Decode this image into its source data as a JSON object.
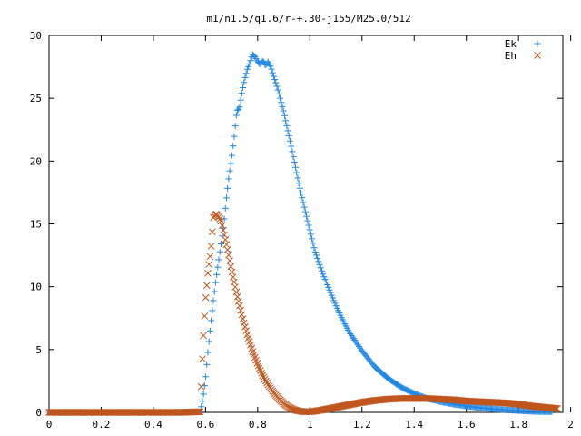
{
  "chart_data": {
    "type": "scatter",
    "title": "m1/n1.5/q1.6/r-+.30-j155/M25.0/512",
    "xlabel": "",
    "ylabel": "",
    "xlim": [
      0,
      1.97
    ],
    "ylim": [
      0,
      30
    ],
    "x_ticks": [
      "0",
      "0.2",
      "0.4",
      "0.6",
      "0.8",
      "1",
      "1.2",
      "1.4",
      "1.6",
      "1.8",
      "2"
    ],
    "y_ticks": [
      "0",
      "5",
      "10",
      "15",
      "20",
      "25",
      "30"
    ],
    "grid": false,
    "legend_position": "top-right",
    "series": [
      {
        "name": "Ek",
        "marker": "plus",
        "color": "#1f87e6",
        "x": [
          0,
          0.1,
          0.2,
          0.3,
          0.4,
          0.5,
          0.58,
          0.59,
          0.6,
          0.61,
          0.62,
          0.63,
          0.64,
          0.65,
          0.66,
          0.67,
          0.68,
          0.69,
          0.7,
          0.71,
          0.72,
          0.73,
          0.74,
          0.75,
          0.76,
          0.77,
          0.78,
          0.79,
          0.8,
          0.81,
          0.82,
          0.83,
          0.84,
          0.85,
          0.86,
          0.87,
          0.88,
          0.9,
          0.92,
          0.94,
          0.96,
          0.98,
          1.0,
          1.02,
          1.05,
          1.08,
          1.1,
          1.12,
          1.15,
          1.2,
          1.25,
          1.3,
          1.35,
          1.4,
          1.45,
          1.5,
          1.55,
          1.6,
          1.65,
          1.7,
          1.75,
          1.8,
          1.85,
          1.9,
          1.93
        ],
        "y": [
          0,
          0,
          0,
          0,
          0,
          0,
          0.05,
          1.1,
          2.7,
          5.0,
          7.0,
          8.9,
          10.6,
          12.0,
          13.5,
          15.0,
          17.0,
          18.8,
          20.2,
          22.0,
          24.0,
          24.2,
          25.5,
          26.5,
          27.3,
          27.8,
          28.5,
          28.3,
          27.9,
          27.7,
          28.0,
          27.6,
          27.9,
          27.5,
          26.8,
          26.2,
          25.5,
          23.9,
          22.0,
          20.0,
          18.0,
          16.2,
          14.5,
          12.8,
          11.0,
          9.5,
          8.5,
          7.6,
          6.4,
          4.9,
          3.6,
          2.7,
          2.0,
          1.5,
          1.1,
          0.85,
          0.65,
          0.5,
          0.38,
          0.28,
          0.2,
          0.14,
          0.08,
          0.05,
          0.05
        ]
      },
      {
        "name": "Eh",
        "marker": "cross",
        "color": "#c0561f",
        "x": [
          0,
          0.1,
          0.2,
          0.3,
          0.4,
          0.5,
          0.58,
          0.59,
          0.6,
          0.61,
          0.62,
          0.63,
          0.64,
          0.65,
          0.66,
          0.67,
          0.68,
          0.69,
          0.7,
          0.72,
          0.74,
          0.76,
          0.78,
          0.8,
          0.82,
          0.84,
          0.86,
          0.88,
          0.9,
          0.92,
          0.94,
          0.96,
          0.98,
          1.0,
          1.02,
          1.05,
          1.1,
          1.15,
          1.2,
          1.25,
          1.3,
          1.35,
          1.4,
          1.45,
          1.5,
          1.55,
          1.6,
          1.65,
          1.7,
          1.75,
          1.8,
          1.85,
          1.9,
          1.95
        ],
        "y": [
          0,
          0,
          0,
          0,
          0,
          0,
          0.05,
          5.3,
          9.0,
          11.3,
          12.8,
          15.5,
          15.8,
          15.6,
          15.2,
          14.3,
          13.4,
          12.4,
          11.3,
          9.4,
          7.7,
          6.2,
          4.9,
          3.8,
          2.9,
          2.2,
          1.6,
          1.1,
          0.7,
          0.4,
          0.2,
          0.1,
          0.05,
          0.05,
          0.1,
          0.2,
          0.4,
          0.6,
          0.8,
          0.95,
          1.05,
          1.1,
          1.1,
          1.1,
          1.05,
          1.0,
          0.9,
          0.85,
          0.8,
          0.75,
          0.65,
          0.5,
          0.4,
          0.3
        ]
      }
    ]
  }
}
